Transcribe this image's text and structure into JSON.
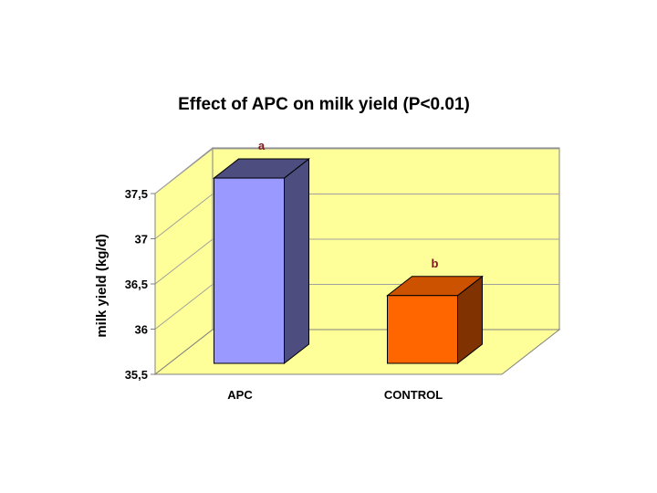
{
  "chart_data": {
    "type": "bar",
    "title": "Effect of APC on milk yield (P<0.01)",
    "xlabel": "",
    "ylabel": "milk yield (kg/d)",
    "categories": [
      "APC",
      "CONTROL"
    ],
    "values": [
      37.55,
      36.25
    ],
    "data_labels": [
      "a",
      "b"
    ],
    "ylim": [
      35.5,
      37.5
    ],
    "yticks": [
      35.5,
      36,
      36.5,
      37,
      37.5
    ],
    "ytick_labels": [
      "35,5",
      "36",
      "36,5",
      "37",
      "37,5"
    ],
    "grid": true,
    "legend": "none",
    "colors": {
      "wall": "#ffff99",
      "floor": "#ffff99",
      "grid": "#a0a0a0",
      "axis": "#808080",
      "bars": [
        {
          "front": "#9999ff",
          "side": "#4d4d80",
          "top": "#4d4d80"
        },
        {
          "front": "#ff6600",
          "side": "#803300",
          "top": "#cc5200"
        }
      ],
      "data_label": "#7a1a1a"
    }
  }
}
